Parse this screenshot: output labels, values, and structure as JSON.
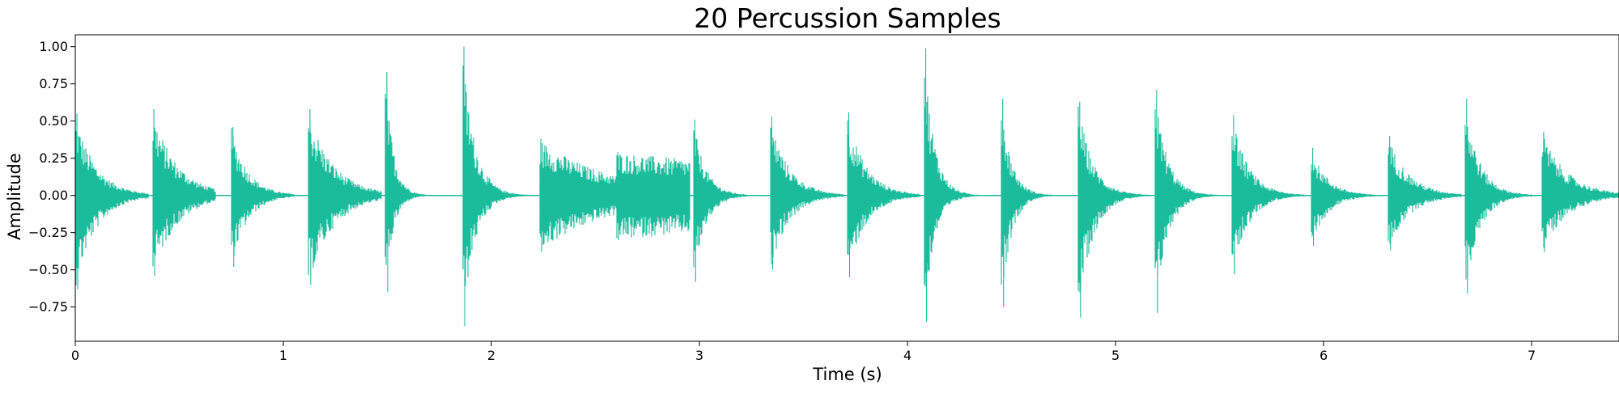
{
  "chart_data": {
    "type": "line",
    "title": "20 Percussion Samples",
    "xlabel": "Time (s)",
    "ylabel": "Amplitude",
    "xlim": [
      0,
      7.42
    ],
    "ylim": [
      -0.98,
      1.08
    ],
    "grid": false,
    "color": "#1ABC9C",
    "x_ticks": [
      0,
      1,
      2,
      3,
      4,
      5,
      6,
      7
    ],
    "y_ticks": [
      -0.75,
      -0.5,
      -0.25,
      0.0,
      0.25,
      0.5,
      0.75,
      1.0
    ],
    "x_tick_labels": [
      "0",
      "1",
      "2",
      "3",
      "4",
      "5",
      "6",
      "7"
    ],
    "y_tick_labels": [
      "−0.75",
      "−0.50",
      "−0.25",
      "0.00",
      "0.25",
      "0.50",
      "0.75",
      "1.00"
    ],
    "series": [
      {
        "segments": [
          {
            "onset": 0.0,
            "peak_pos": 0.55,
            "peak_neg": -0.63,
            "decay_s": 0.1,
            "length_s": 0.35
          },
          {
            "onset": 0.37,
            "peak_pos": 0.58,
            "peak_neg": -0.54,
            "decay_s": 0.12,
            "length_s": 0.3
          },
          {
            "onset": 0.75,
            "peak_pos": 0.46,
            "peak_neg": -0.48,
            "decay_s": 0.08,
            "length_s": 0.3
          },
          {
            "onset": 1.12,
            "peak_pos": 0.58,
            "peak_neg": -0.6,
            "decay_s": 0.12,
            "length_s": 0.35
          },
          {
            "onset": 1.49,
            "peak_pos": 0.83,
            "peak_neg": -0.65,
            "decay_s": 0.04,
            "length_s": 0.3
          },
          {
            "onset": 1.86,
            "peak_pos": 1.0,
            "peak_neg": -0.88,
            "decay_s": 0.06,
            "length_s": 0.35
          },
          {
            "onset": 2.23,
            "peak_pos": 0.38,
            "peak_neg": -0.38,
            "decay_s": 0.35,
            "length_s": 0.4
          },
          {
            "onset": 2.6,
            "peak_pos": 0.29,
            "peak_neg": -0.3,
            "decay_s": 2.0,
            "length_s": 0.35
          },
          {
            "onset": 2.97,
            "peak_pos": 0.51,
            "peak_neg": -0.58,
            "decay_s": 0.06,
            "length_s": 0.35
          },
          {
            "onset": 3.34,
            "peak_pos": 0.53,
            "peak_neg": -0.5,
            "decay_s": 0.09,
            "length_s": 0.35
          },
          {
            "onset": 3.71,
            "peak_pos": 0.56,
            "peak_neg": -0.55,
            "decay_s": 0.09,
            "length_s": 0.35
          },
          {
            "onset": 4.08,
            "peak_pos": 0.99,
            "peak_neg": -0.85,
            "decay_s": 0.05,
            "length_s": 0.35
          },
          {
            "onset": 4.45,
            "peak_pos": 0.65,
            "peak_neg": -0.75,
            "decay_s": 0.05,
            "length_s": 0.35
          },
          {
            "onset": 4.82,
            "peak_pos": 0.63,
            "peak_neg": -0.82,
            "decay_s": 0.07,
            "length_s": 0.35
          },
          {
            "onset": 5.19,
            "peak_pos": 0.71,
            "peak_neg": -0.79,
            "decay_s": 0.06,
            "length_s": 0.35
          },
          {
            "onset": 5.56,
            "peak_pos": 0.54,
            "peak_neg": -0.53,
            "decay_s": 0.08,
            "length_s": 0.35
          },
          {
            "onset": 5.94,
            "peak_pos": 0.32,
            "peak_neg": -0.34,
            "decay_s": 0.08,
            "length_s": 0.3
          },
          {
            "onset": 6.31,
            "peak_pos": 0.4,
            "peak_neg": -0.37,
            "decay_s": 0.1,
            "length_s": 0.35
          },
          {
            "onset": 6.68,
            "peak_pos": 0.65,
            "peak_neg": -0.66,
            "decay_s": 0.07,
            "length_s": 0.35
          },
          {
            "onset": 7.05,
            "peak_pos": 0.43,
            "peak_neg": -0.38,
            "decay_s": 0.12,
            "length_s": 0.37
          }
        ]
      }
    ]
  }
}
